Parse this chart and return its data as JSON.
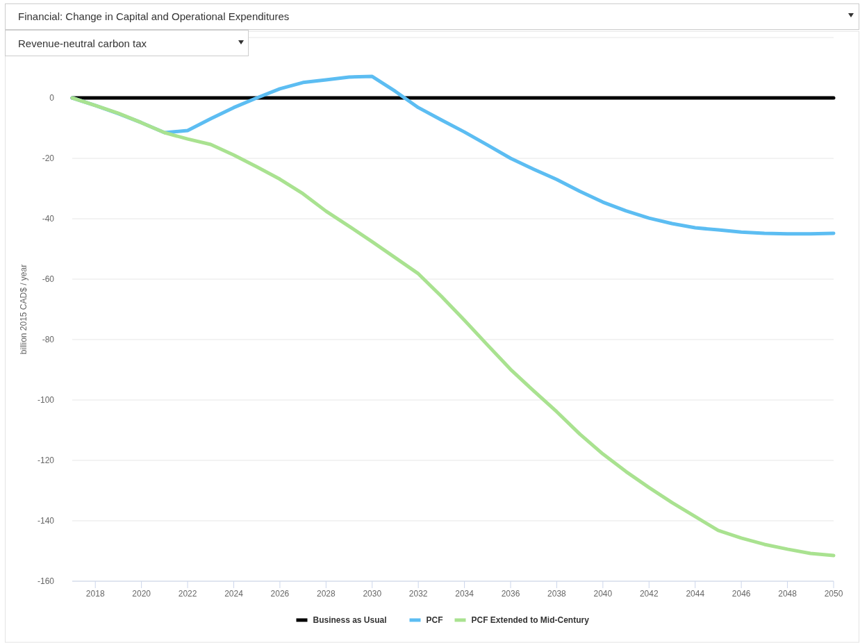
{
  "chart_data": {
    "type": "line",
    "title": "Financial: Change in Capital and Operational Expenditures",
    "subtitle": "Revenue-neutral carbon tax",
    "ylabel": "billion 2015 CAD$ / year",
    "x": [
      2017,
      2018,
      2019,
      2020,
      2021,
      2022,
      2023,
      2024,
      2025,
      2026,
      2027,
      2028,
      2029,
      2030,
      2031,
      2032,
      2033,
      2034,
      2035,
      2036,
      2037,
      2038,
      2039,
      2040,
      2041,
      2042,
      2043,
      2044,
      2045,
      2046,
      2047,
      2048,
      2049,
      2050
    ],
    "series": [
      {
        "name": "Business as Usual",
        "color": "#000000",
        "values": [
          0,
          0,
          0,
          0,
          0,
          0,
          0,
          0,
          0,
          0,
          0,
          0,
          0,
          0,
          0,
          0,
          0,
          0,
          0,
          0,
          0,
          0,
          0,
          0,
          0,
          0,
          0,
          0,
          0,
          0,
          0,
          0,
          0,
          0
        ]
      },
      {
        "name": "PCF",
        "color": "#5cbdf2",
        "values": [
          0,
          -2.5,
          -5.2,
          -8.2,
          -11.5,
          -10.8,
          -6.9,
          -3.2,
          0,
          3,
          5.1,
          6,
          6.9,
          7.1,
          2.2,
          -3.2,
          -7.3,
          -11.3,
          -15.6,
          -20,
          -23.6,
          -27,
          -30.9,
          -34.5,
          -37.4,
          -39.8,
          -41.6,
          -43,
          -43.7,
          -44.4,
          -44.8,
          -45,
          -45,
          -44.8
        ]
      },
      {
        "name": "PCF Extended to Mid-Century",
        "color": "#a9e290",
        "values": [
          0,
          -2.5,
          -5.1,
          -8.2,
          -11.5,
          -13.6,
          -15.4,
          -18.9,
          -22.8,
          -26.9,
          -31.7,
          -37.5,
          -42.5,
          -47.6,
          -52.9,
          -58.2,
          -65.7,
          -73.6,
          -81.8,
          -89.9,
          -97,
          -103.9,
          -111.3,
          -117.9,
          -123.7,
          -129,
          -134,
          -138.6,
          -143.2,
          -145.7,
          -147.8,
          -149.4,
          -150.8,
          -151.5
        ]
      }
    ],
    "xlim": [
      2017,
      2050
    ],
    "xticks": [
      2018,
      2020,
      2022,
      2024,
      2026,
      2028,
      2030,
      2032,
      2034,
      2036,
      2038,
      2040,
      2042,
      2044,
      2046,
      2048,
      2050
    ],
    "ylim": [
      -160,
      20
    ],
    "yticks": [
      -160,
      -140,
      -120,
      -100,
      -80,
      -60,
      -40,
      -20,
      0,
      {
        "value": 20,
        "label": null
      }
    ],
    "grid": "y",
    "legend": "bottom",
    "marker": "none",
    "line_style": "solid"
  }
}
